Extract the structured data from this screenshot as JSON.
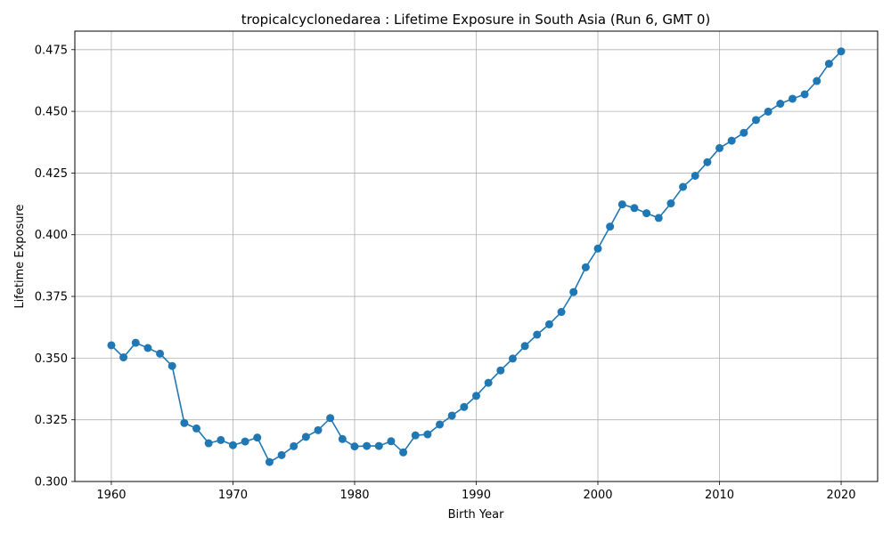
{
  "chart_data": {
    "type": "line",
    "title": "tropicalcyclonedarea : Lifetime Exposure in South Asia (Run 6, GMT 0)",
    "xlabel": "Birth Year",
    "ylabel": "Lifetime Exposure",
    "xlim": [
      1957,
      2023
    ],
    "ylim": [
      0.3,
      0.4825
    ],
    "xticks": [
      1960,
      1970,
      1980,
      1990,
      2000,
      2010,
      2020
    ],
    "yticks": [
      0.3,
      0.325,
      0.35,
      0.375,
      0.4,
      0.425,
      0.45,
      0.475
    ],
    "ytick_labels": [
      "0.300",
      "0.325",
      "0.350",
      "0.375",
      "0.400",
      "0.425",
      "0.450",
      "0.475"
    ],
    "grid": true,
    "color": "#1f77b4",
    "marker": "circle",
    "x": [
      1960,
      1961,
      1962,
      1963,
      1964,
      1965,
      1966,
      1967,
      1968,
      1969,
      1970,
      1971,
      1972,
      1973,
      1974,
      1975,
      1976,
      1977,
      1978,
      1979,
      1980,
      1981,
      1982,
      1983,
      1984,
      1985,
      1986,
      1987,
      1988,
      1989,
      1990,
      1991,
      1992,
      1993,
      1994,
      1995,
      1996,
      1997,
      1998,
      1999,
      2000,
      2001,
      2002,
      2003,
      2004,
      2005,
      2006,
      2007,
      2008,
      2009,
      2010,
      2011,
      2012,
      2013,
      2014,
      2015,
      2016,
      2017,
      2018,
      2019,
      2020
    ],
    "y": [
      0.3552,
      0.3503,
      0.3562,
      0.3541,
      0.3518,
      0.3468,
      0.3237,
      0.3215,
      0.3155,
      0.3168,
      0.3147,
      0.3162,
      0.3178,
      0.3079,
      0.3107,
      0.3143,
      0.3181,
      0.3208,
      0.3257,
      0.3172,
      0.3142,
      0.3144,
      0.3144,
      0.3163,
      0.3118,
      0.3187,
      0.3191,
      0.3231,
      0.3267,
      0.3302,
      0.3347,
      0.34,
      0.345,
      0.3498,
      0.3549,
      0.3595,
      0.3637,
      0.3687,
      0.3768,
      0.3868,
      0.3944,
      0.4033,
      0.4123,
      0.4108,
      0.4087,
      0.4068,
      0.4127,
      0.4194,
      0.4239,
      0.4294,
      0.4351,
      0.4381,
      0.4413,
      0.4465,
      0.4499,
      0.4531,
      0.4551,
      0.4569,
      0.4623,
      0.4693,
      0.4743
    ]
  }
}
